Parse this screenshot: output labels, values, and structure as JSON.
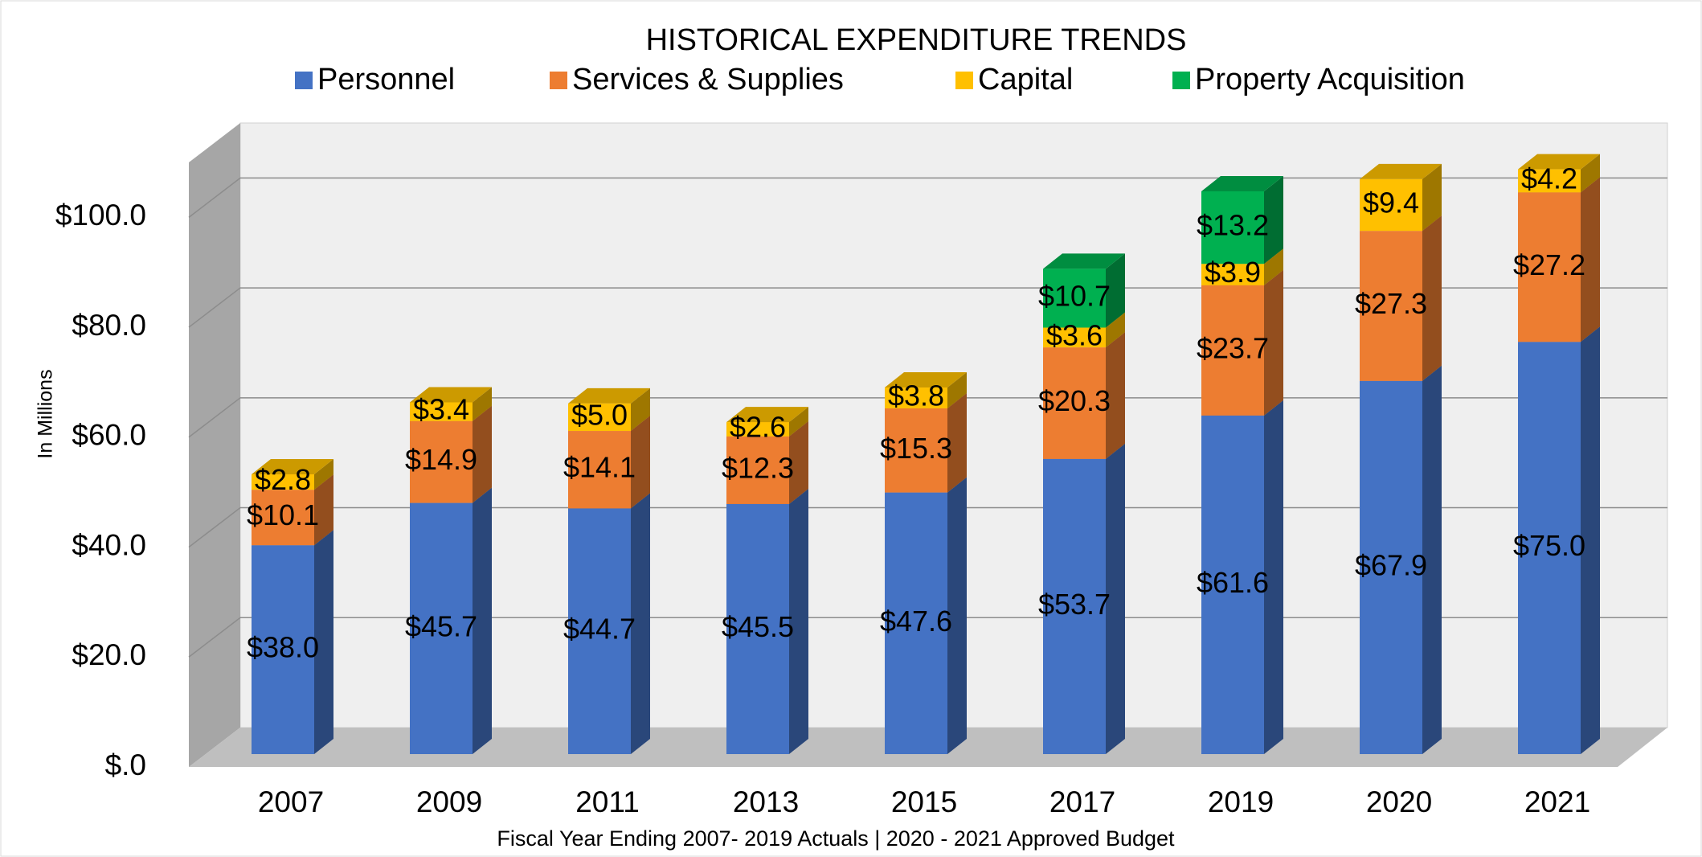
{
  "chart_data": {
    "type": "bar",
    "stacked": true,
    "title": "HISTORICAL EXPENDITURE TRENDS",
    "ylabel": "In Millions",
    "xlabel": "Fiscal Year Ending 2007- 2019 Actuals | 2020 - 2021 Approved Budget",
    "categories": [
      "2007",
      "2009",
      "2011",
      "2013",
      "2015",
      "2017",
      "2019",
      "2020",
      "2021"
    ],
    "series": [
      {
        "name": "Personnel",
        "color": "#4472c4",
        "values": [
          38.0,
          45.7,
          44.7,
          45.5,
          47.6,
          53.7,
          61.6,
          67.9,
          75.0
        ],
        "value_labels": [
          "$38.0",
          "$45.7",
          "$44.7",
          "$45.5",
          "$47.6",
          "$53.7",
          "$61.6",
          "$67.9",
          "$75.0"
        ]
      },
      {
        "name": "Services & Supplies",
        "color": "#ed7d31",
        "values": [
          10.1,
          14.9,
          14.1,
          12.3,
          15.3,
          20.3,
          23.7,
          27.3,
          27.2
        ],
        "value_labels": [
          "$10.1",
          "$14.9",
          "$14.1",
          "$12.3",
          "$15.3",
          "$20.3",
          "$23.7",
          "$27.3",
          "$27.2"
        ]
      },
      {
        "name": "Capital",
        "color": "#ffc000",
        "values": [
          2.8,
          3.4,
          5.0,
          2.6,
          3.8,
          3.6,
          3.9,
          9.4,
          4.2
        ],
        "value_labels": [
          "$2.8",
          "$3.4",
          "$5.0",
          "$2.6",
          "$3.8",
          "$3.6",
          "$3.9",
          "$9.4",
          "$4.2"
        ]
      },
      {
        "name": "Property Acquisition",
        "color": "#00b050",
        "values": [
          null,
          null,
          null,
          null,
          null,
          10.7,
          13.2,
          null,
          null
        ],
        "value_labels": [
          null,
          null,
          null,
          null,
          null,
          "$10.7",
          "$13.2",
          null,
          null
        ]
      }
    ],
    "ylim": [
      0,
      110
    ],
    "yticks": [
      {
        "value": 0,
        "label": "$.0"
      },
      {
        "value": 20,
        "label": "$20.0"
      },
      {
        "value": 40,
        "label": "$40.0"
      },
      {
        "value": 60,
        "label": "$60.0"
      },
      {
        "value": 80,
        "label": "$80.0"
      },
      {
        "value": 100,
        "label": "$100.0"
      }
    ],
    "grid": true,
    "legend": "top"
  }
}
